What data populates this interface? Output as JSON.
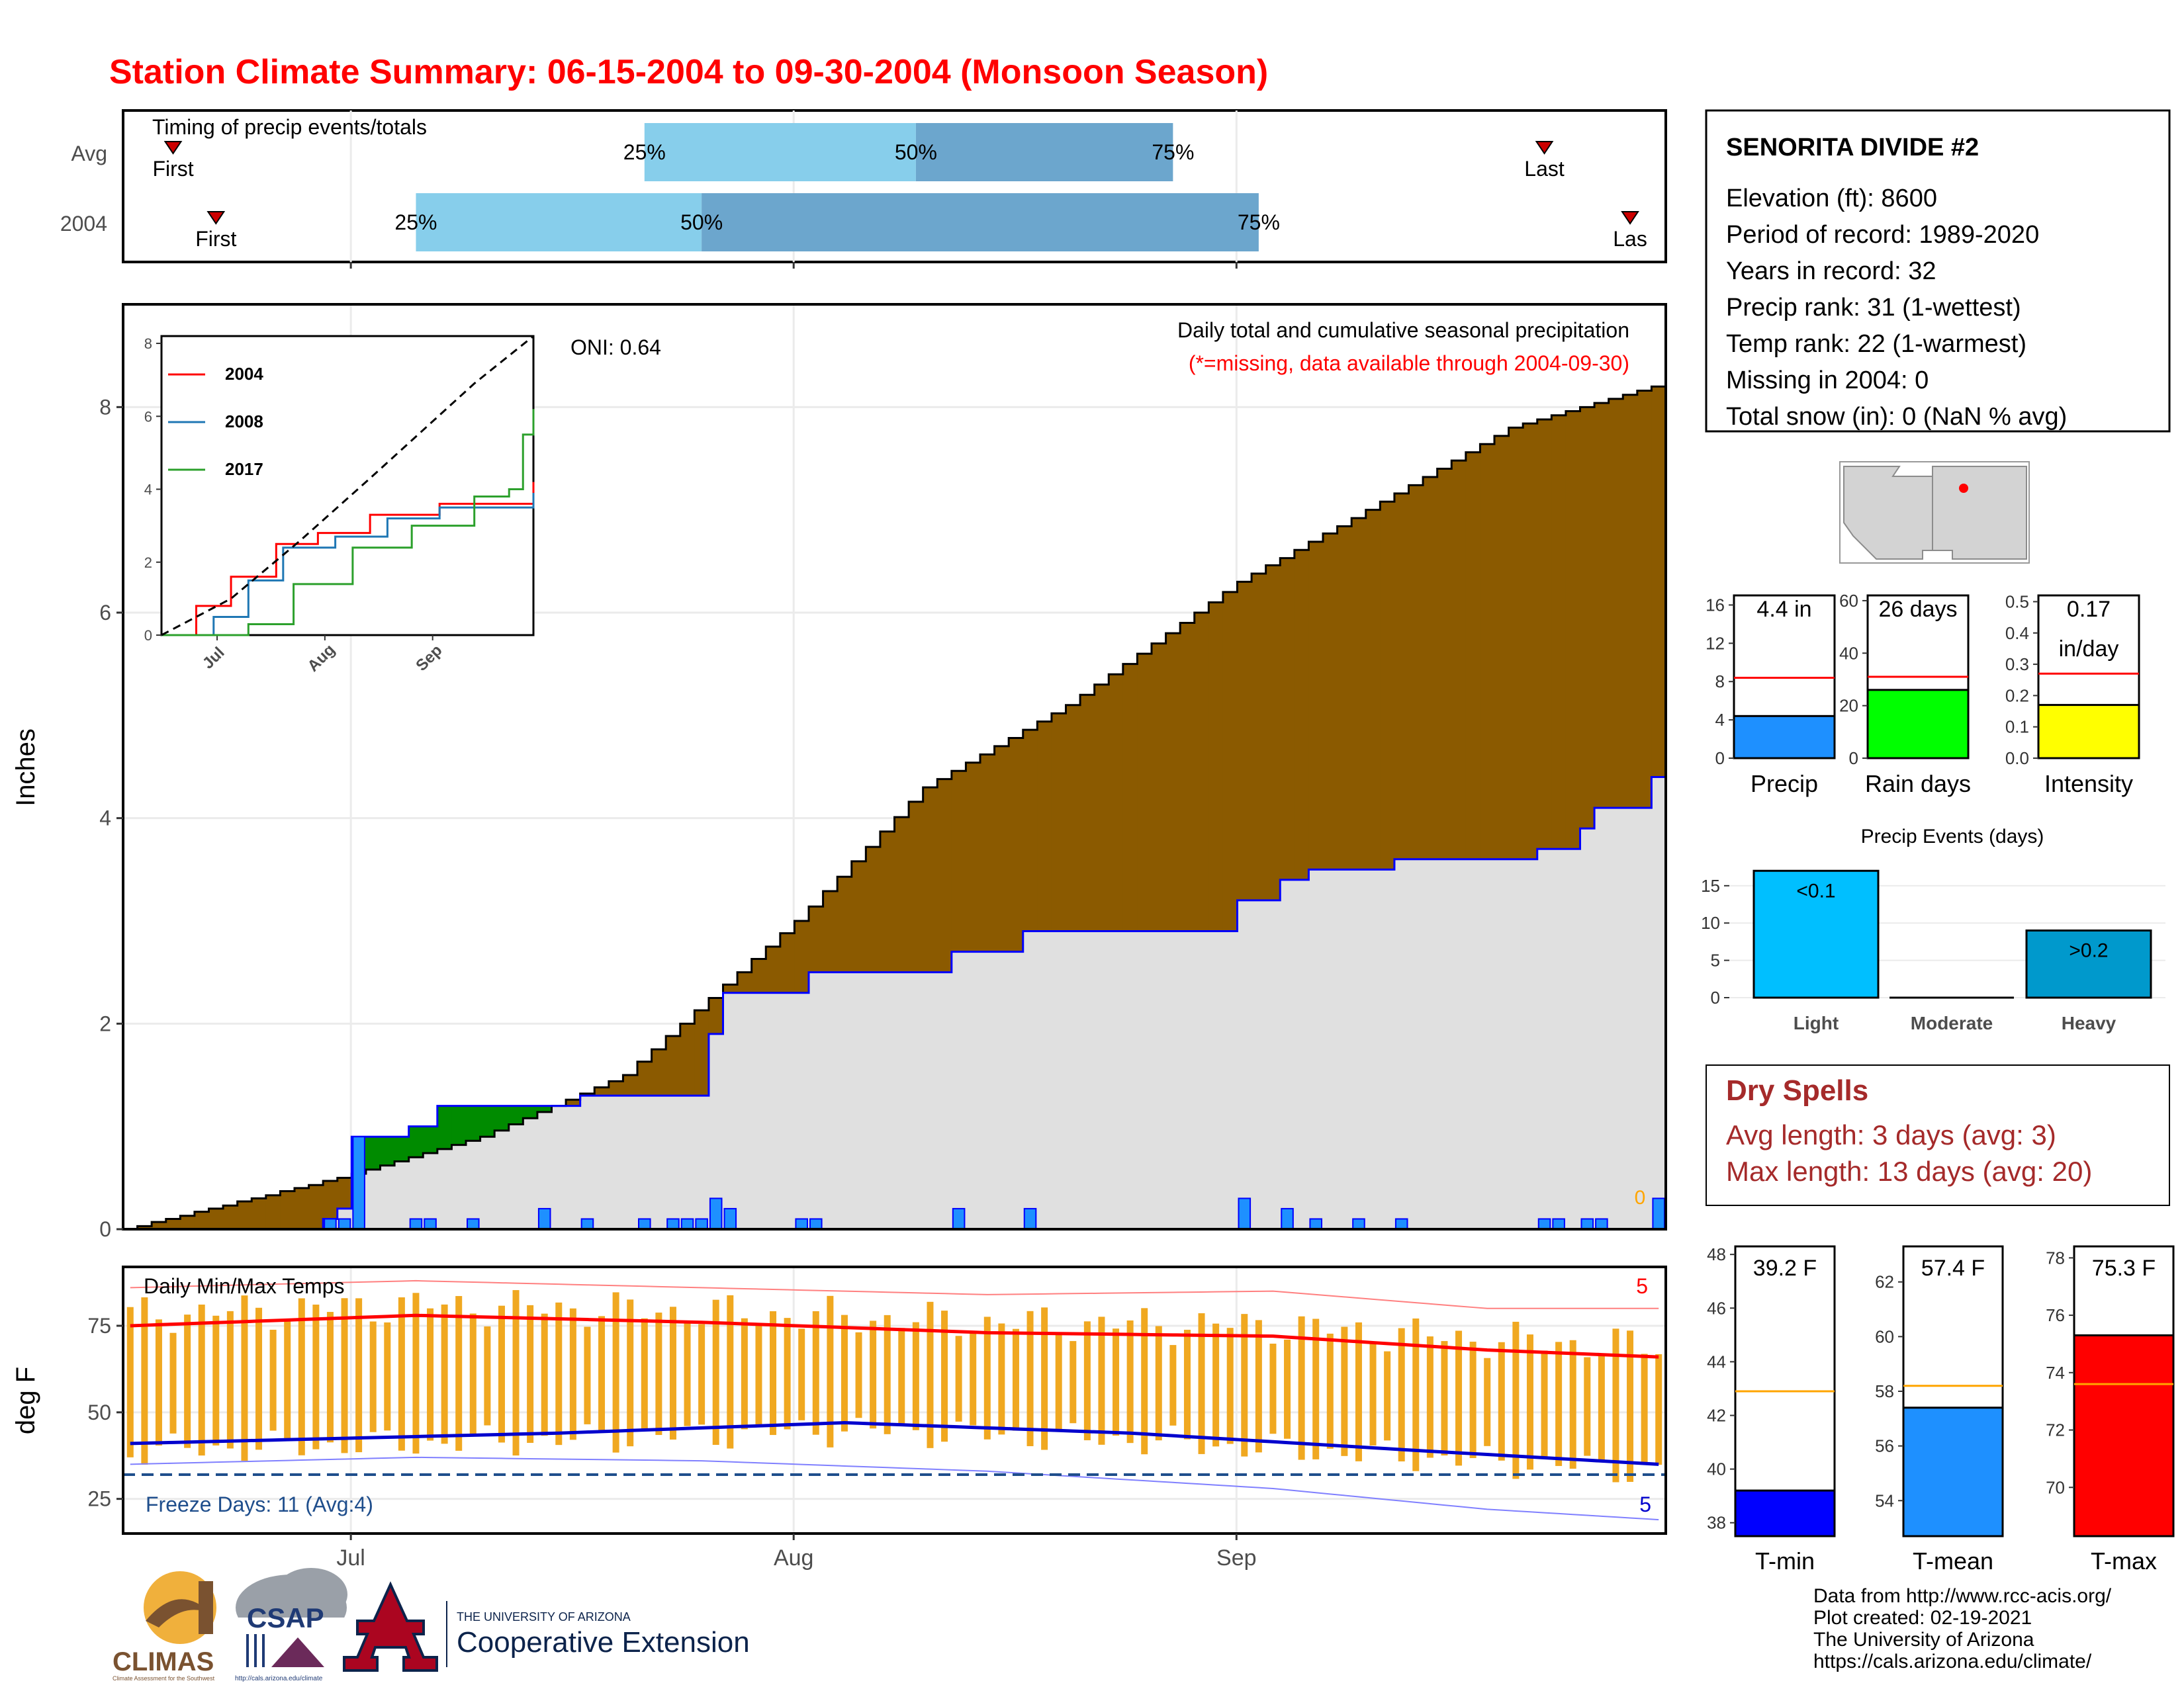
{
  "page": {
    "title": "Station Climate Summary: 06-15-2004 to 09-30-2004 (Monsoon Season)",
    "title_color": "#ff0000"
  },
  "timing": {
    "title": "Timing of precip events/totals",
    "rows": [
      {
        "label": "Avg",
        "first_label": "First",
        "last_label": "Last",
        "q25_label": "25%",
        "q50_label": "50%",
        "q75_label": "75%"
      },
      {
        "label": "2004",
        "first_label": "First",
        "last_label": "Las",
        "q25_label": "25%",
        "q50_label": "50%",
        "q75_label": "75%"
      }
    ]
  },
  "precip_panel": {
    "ylabel": "Inches",
    "yticks": [
      "0",
      "2",
      "4",
      "6",
      "8"
    ],
    "oni": "ONI: 0.64",
    "title": "Daily total and cumulative seasonal precipitation",
    "missing_note": "(*=missing, data available through 2004-09-30)",
    "missing_count": "0",
    "fill_above_color": "#8b5a00",
    "fill_below_color": "#008b00",
    "avg_fill_color": "#e0e0e0",
    "avg_line_color": "#0000ff",
    "bar_color": "#1e90ff"
  },
  "inset": {
    "yticks": [
      "0",
      "2",
      "4",
      "6",
      "8"
    ],
    "xticks": [
      "Jul",
      "Aug",
      "Sep"
    ],
    "legend": [
      {
        "name": "2004",
        "color": "#ff0000"
      },
      {
        "name": "2008",
        "color": "#1f77b4"
      },
      {
        "name": "2017",
        "color": "#2ca02c"
      }
    ]
  },
  "temp_panel": {
    "ylabel": "deg F",
    "title": "Daily Min/Max Temps",
    "yticks": [
      "25",
      "50",
      "75"
    ],
    "freeze_note": "Freeze Days: 11 (Avg:4)",
    "high_count": "5",
    "low_count": "5",
    "bar_color": "#f0a820",
    "max_avg_color": "#ff0000",
    "min_avg_color": "#0000cd"
  },
  "x_axis": {
    "ticks": [
      "Jul",
      "Aug",
      "Sep"
    ]
  },
  "station": {
    "name": "SENORITA DIVIDE #2",
    "lines": [
      "Elevation (ft): 8600",
      "Period of record: 1989-2020",
      "Years in record: 32",
      "Precip rank: 31 (1-wettest)",
      "Temp rank: 22 (1-warmest)",
      "Missing in 2004: 0",
      "Total snow (in): 0 (NaN % avg)"
    ]
  },
  "summary_bars": [
    {
      "label": "Precip",
      "value_label": "4.4 in",
      "value": 4.4,
      "avg": 8.4,
      "ymax": 17,
      "yticks": [
        "0",
        "4",
        "8",
        "12",
        "16"
      ],
      "tick_values": [
        0,
        4,
        8,
        12,
        16
      ],
      "color": "#1e90ff"
    },
    {
      "label": "Rain days",
      "value_label": "26 days",
      "value": 26,
      "avg": 31,
      "ymax": 62,
      "yticks": [
        "0",
        "20",
        "40",
        "60"
      ],
      "tick_values": [
        0,
        20,
        40,
        60
      ],
      "color": "#00ff00"
    },
    {
      "label": "Intensity",
      "value_label": "0.17",
      "value_label2": "in/day",
      "value": 0.17,
      "avg": 0.27,
      "ymax": 0.52,
      "yticks": [
        "0.0",
        "0.1",
        "0.2",
        "0.3",
        "0.4",
        "0.5"
      ],
      "tick_values": [
        0,
        0.1,
        0.2,
        0.3,
        0.4,
        0.5
      ],
      "color": "#ffff00"
    }
  ],
  "precip_events": {
    "title": "Precip Events (days)",
    "yticks": [
      "0",
      "5",
      "10",
      "15"
    ],
    "bars": [
      {
        "label": "Light",
        "value": 17,
        "bar_label": "<0.1",
        "color": "#00bfff"
      },
      {
        "label": "Moderate",
        "value": 0,
        "bar_label": "",
        "color": "#1e90ff"
      },
      {
        "label": "Heavy",
        "value": 9,
        "bar_label": ">0.2",
        "color": "#0099cc"
      }
    ]
  },
  "dry_spells": {
    "title": "Dry Spells",
    "avg_line": "Avg length: 3 days (avg: 3)",
    "max_line": "Max length: 13 days (avg: 20)",
    "color": "#a52a2a"
  },
  "temp_bars": [
    {
      "label": "T-min",
      "value_label": "39.2 F",
      "value": 39.2,
      "avg": 42.9,
      "ymin": 37.5,
      "ymax": 48.3,
      "yticks": [
        "38",
        "40",
        "42",
        "44",
        "46",
        "48"
      ],
      "tick_values": [
        38,
        40,
        42,
        44,
        46,
        48
      ],
      "color": "#0000ff"
    },
    {
      "label": "T-mean",
      "value_label": "57.4 F",
      "value": 57.4,
      "avg": 58.2,
      "ymin": 52.7,
      "ymax": 63.3,
      "yticks": [
        "54",
        "56",
        "58",
        "60",
        "62"
      ],
      "tick_values": [
        54,
        56,
        58,
        60,
        62
      ],
      "color": "#1e90ff"
    },
    {
      "label": "T-max",
      "value_label": "75.3 F",
      "value": 75.3,
      "avg": 73.6,
      "ymin": 68.3,
      "ymax": 78.4,
      "yticks": [
        "70",
        "72",
        "74",
        "76",
        "78"
      ],
      "tick_values": [
        70,
        72,
        74,
        76,
        78
      ],
      "color": "#ff0000"
    }
  ],
  "credits": {
    "lines": [
      "Data from http://www.rcc-acis.org/",
      "Plot created: 02-19-2021",
      "The University of Arizona",
      "https://cals.arizona.edu/climate/"
    ]
  },
  "logos": {
    "climas": "CLIMAS",
    "climas_sub": "Climate Assessment for the Southwest",
    "csap": "CSAP",
    "csap_url": "http://cals.arizona.edu/climate",
    "ua_top": "THE UNIVERSITY OF ARIZONA",
    "ua_main": "Cooperative Extension"
  },
  "chart_data": [
    {
      "type": "bar",
      "title": "Timing of precip events/totals",
      "series": [
        {
          "name": "Avg",
          "values": {
            "first": "Jun 18",
            "q25": "Jul 21",
            "q50": "Aug 09",
            "q75": "Aug 27",
            "last": "Sep 22"
          }
        },
        {
          "name": "2004",
          "values": {
            "first": "Jun 21",
            "q25": "Jul 05",
            "q50": "Jul 25",
            "q75": "Sep 02",
            "last": "Sep 28"
          }
        }
      ]
    },
    {
      "type": "area",
      "title": "Daily total and cumulative seasonal precipitation",
      "ylabel": "Inches",
      "ylim": [
        0,
        9
      ],
      "x_range": [
        "2004-06-15",
        "2004-09-30"
      ],
      "daily_precip": [
        {
          "date": "2004-06-29",
          "value": 0.1
        },
        {
          "date": "2004-06-30",
          "value": 0.1
        },
        {
          "date": "2004-07-01",
          "value": 0.9
        },
        {
          "date": "2004-07-05",
          "value": 0.1
        },
        {
          "date": "2004-07-06",
          "value": 0.1
        },
        {
          "date": "2004-07-09",
          "value": 0.1
        },
        {
          "date": "2004-07-14",
          "value": 0.2
        },
        {
          "date": "2004-07-17",
          "value": 0.1
        },
        {
          "date": "2004-07-21",
          "value": 0.1
        },
        {
          "date": "2004-07-23",
          "value": 0.1
        },
        {
          "date": "2004-07-24",
          "value": 0.1
        },
        {
          "date": "2004-07-25",
          "value": 0.1
        },
        {
          "date": "2004-07-26",
          "value": 0.3
        },
        {
          "date": "2004-07-27",
          "value": 0.2
        },
        {
          "date": "2004-08-01",
          "value": 0.1
        },
        {
          "date": "2004-08-02",
          "value": 0.1
        },
        {
          "date": "2004-08-12",
          "value": 0.2
        },
        {
          "date": "2004-08-17",
          "value": 0.2
        },
        {
          "date": "2004-09-01",
          "value": 0.3
        },
        {
          "date": "2004-09-04",
          "value": 0.2
        },
        {
          "date": "2004-09-06",
          "value": 0.1
        },
        {
          "date": "2004-09-09",
          "value": 0.1
        },
        {
          "date": "2004-09-12",
          "value": 0.1
        },
        {
          "date": "2004-09-22",
          "value": 0.1
        },
        {
          "date": "2004-09-23",
          "value": 0.1
        },
        {
          "date": "2004-09-25",
          "value": 0.1
        },
        {
          "date": "2004-09-26",
          "value": 0.1
        },
        {
          "date": "2004-09-30",
          "value": 0.3
        }
      ],
      "cumulative_2004": [
        {
          "date": "2004-06-15",
          "value": 0
        },
        {
          "date": "2004-06-29",
          "value": 0.1
        },
        {
          "date": "2004-06-30",
          "value": 0.2
        },
        {
          "date": "2004-07-01",
          "value": 0.9
        },
        {
          "date": "2004-07-05",
          "value": 1.0
        },
        {
          "date": "2004-07-07",
          "value": 1.2
        },
        {
          "date": "2004-07-17",
          "value": 1.3
        },
        {
          "date": "2004-07-26",
          "value": 1.9
        },
        {
          "date": "2004-07-27",
          "value": 2.1
        },
        {
          "date": "2004-07-27",
          "value": 2.3
        },
        {
          "date": "2004-08-02",
          "value": 2.5
        },
        {
          "date": "2004-08-12",
          "value": 2.7
        },
        {
          "date": "2004-08-17",
          "value": 2.9
        },
        {
          "date": "2004-09-01",
          "value": 3.2
        },
        {
          "date": "2004-09-04",
          "value": 3.4
        },
        {
          "date": "2004-09-06",
          "value": 3.5
        },
        {
          "date": "2004-09-12",
          "value": 3.6
        },
        {
          "date": "2004-09-22",
          "value": 3.7
        },
        {
          "date": "2004-09-25",
          "value": 3.9
        },
        {
          "date": "2004-09-26",
          "value": 4.1
        },
        {
          "date": "2004-09-30",
          "value": 4.4
        }
      ],
      "cumulative_avg": [
        {
          "date": "2004-06-15",
          "value": 0
        },
        {
          "date": "2004-06-30",
          "value": 0.5
        },
        {
          "date": "2004-07-10",
          "value": 0.9
        },
        {
          "date": "2004-07-20",
          "value": 1.5
        },
        {
          "date": "2004-08-01",
          "value": 3.0
        },
        {
          "date": "2004-08-10",
          "value": 4.3
        },
        {
          "date": "2004-08-20",
          "value": 5.1
        },
        {
          "date": "2004-09-01",
          "value": 6.3
        },
        {
          "date": "2004-09-10",
          "value": 7.0
        },
        {
          "date": "2004-09-20",
          "value": 7.8
        },
        {
          "date": "2004-09-30",
          "value": 8.2
        }
      ]
    },
    {
      "type": "line",
      "title": "Inset cumulative precipitation comparison",
      "ylim": [
        0,
        8.2
      ],
      "series": [
        {
          "name": "2004",
          "values": [
            [
              0,
              0
            ],
            [
              10,
              0.8
            ],
            [
              20,
              1.6
            ],
            [
              33,
              2.5
            ],
            [
              45,
              2.8
            ],
            [
              60,
              3.3
            ],
            [
              80,
              3.6
            ],
            [
              107,
              4.2
            ]
          ]
        },
        {
          "name": "2008",
          "values": [
            [
              0,
              0
            ],
            [
              15,
              0.5
            ],
            [
              25,
              1.5
            ],
            [
              35,
              2.4
            ],
            [
              50,
              2.7
            ],
            [
              65,
              3.2
            ],
            [
              80,
              3.5
            ],
            [
              107,
              3.9
            ]
          ]
        },
        {
          "name": "2017",
          "values": [
            [
              0,
              0
            ],
            [
              25,
              0.3
            ],
            [
              38,
              1.4
            ],
            [
              55,
              2.4
            ],
            [
              72,
              3.0
            ],
            [
              90,
              3.8
            ],
            [
              100,
              4.0
            ],
            [
              104,
              5.5
            ],
            [
              107,
              6.2
            ]
          ]
        },
        {
          "values": [
            [
              0,
              0
            ],
            [
              20,
              1.0
            ],
            [
              40,
              2.6
            ],
            [
              60,
              4.3
            ],
            [
              75,
              5.6
            ],
            [
              90,
              6.9
            ],
            [
              107,
              8.2
            ]
          ]
        }
      ]
    },
    {
      "type": "bar",
      "title": "Daily Min/Max Temps",
      "ylabel": "deg F",
      "ylim": [
        15,
        92
      ],
      "freeze_threshold": 32,
      "avg_max": [
        [
          0,
          75
        ],
        [
          20,
          78
        ],
        [
          40,
          76
        ],
        [
          60,
          73
        ],
        [
          80,
          72
        ],
        [
          95,
          68
        ],
        [
          107,
          66
        ]
      ],
      "avg_min": [
        [
          0,
          41
        ],
        [
          30,
          44
        ],
        [
          50,
          47
        ],
        [
          70,
          44
        ],
        [
          90,
          39
        ],
        [
          107,
          35
        ]
      ],
      "record_max": [
        [
          0,
          86
        ],
        [
          20,
          88
        ],
        [
          40,
          86
        ],
        [
          60,
          84
        ],
        [
          80,
          85
        ],
        [
          95,
          80
        ],
        [
          107,
          80
        ]
      ],
      "record_min": [
        [
          0,
          35
        ],
        [
          20,
          37
        ],
        [
          40,
          36
        ],
        [
          60,
          33
        ],
        [
          80,
          28
        ],
        [
          95,
          22
        ],
        [
          107,
          19
        ]
      ]
    },
    {
      "type": "bar",
      "title": "Precip Events (days)",
      "categories": [
        "Light",
        "Moderate",
        "Heavy"
      ],
      "values": [
        17,
        0,
        9
      ]
    },
    {
      "type": "bar",
      "categories": [
        "Precip",
        "Rain days",
        "Intensity"
      ],
      "values": [
        4.4,
        26,
        0.17
      ]
    },
    {
      "type": "bar",
      "categories": [
        "T-min",
        "T-mean",
        "T-max"
      ],
      "values": [
        39.2,
        57.4,
        75.3
      ]
    }
  ]
}
